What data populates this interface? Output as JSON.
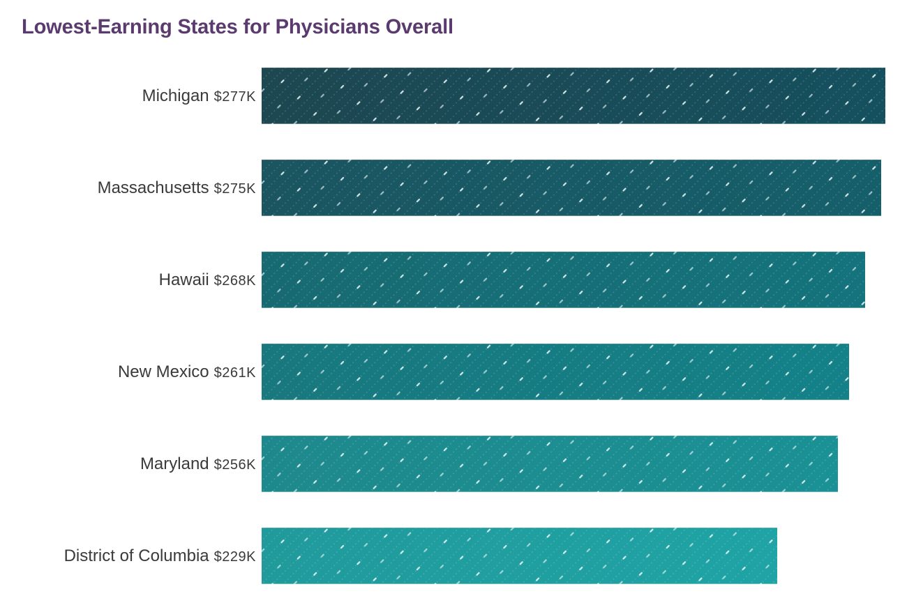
{
  "title": "Lowest-Earning States for Physicians Overall",
  "title_color": "#5b3b6f",
  "label_color": "#3a3a3a",
  "chart_data": {
    "type": "bar",
    "orientation": "horizontal",
    "title": "Lowest-Earning States for Physicians Overall",
    "categories": [
      "Michigan",
      "Massachusetts",
      "Hawaii",
      "New Mexico",
      "Maryland",
      "District of Columbia"
    ],
    "values": [
      277,
      275,
      268,
      261,
      256,
      229
    ],
    "value_labels": [
      "$277K",
      "$275K",
      "$268K",
      "$261K",
      "$256K",
      "$229K"
    ],
    "unit": "USD thousands (annual compensation)",
    "xlim": [
      0,
      277
    ],
    "sorted": "descending",
    "grid": false,
    "legend": false,
    "bar_texture": "diagonal dotted lines with bright dashes",
    "bar_colors_left": [
      "#1d4751",
      "#1a5560",
      "#186a72",
      "#18787e",
      "#1e898c",
      "#219a9c"
    ],
    "bar_colors_right": [
      "#15505e",
      "#155f6b",
      "#14737c",
      "#148188",
      "#1a9195",
      "#1fa3a4"
    ]
  }
}
